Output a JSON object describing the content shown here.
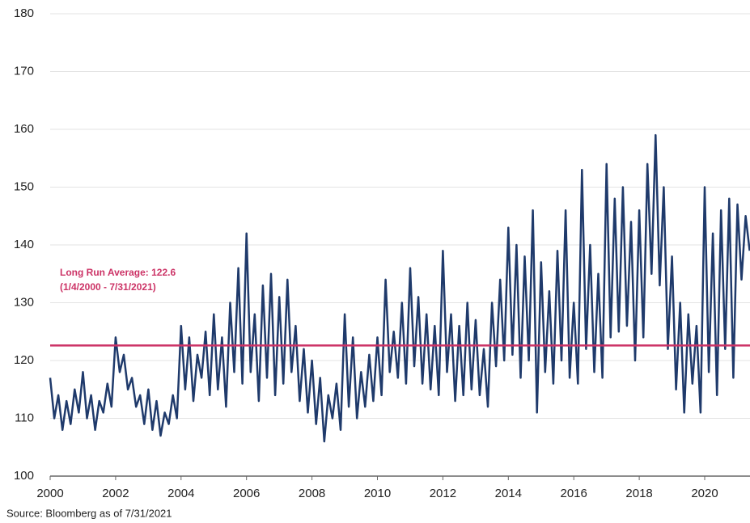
{
  "chart_data": {
    "type": "line",
    "x": [
      2000,
      2000.125,
      2000.25,
      2000.375,
      2000.5,
      2000.625,
      2000.75,
      2000.875,
      2001,
      2001.125,
      2001.25,
      2001.375,
      2001.5,
      2001.625,
      2001.75,
      2001.875,
      2002,
      2002.125,
      2002.25,
      2002.375,
      2002.5,
      2002.625,
      2002.75,
      2002.875,
      2003,
      2003.125,
      2003.25,
      2003.375,
      2003.5,
      2003.625,
      2003.75,
      2003.875,
      2004,
      2004.125,
      2004.25,
      2004.375,
      2004.5,
      2004.625,
      2004.75,
      2004.875,
      2005,
      2005.125,
      2005.25,
      2005.375,
      2005.5,
      2005.625,
      2005.75,
      2005.875,
      2006,
      2006.125,
      2006.25,
      2006.375,
      2006.5,
      2006.625,
      2006.75,
      2006.875,
      2007,
      2007.125,
      2007.25,
      2007.375,
      2007.5,
      2007.625,
      2007.75,
      2007.875,
      2008,
      2008.125,
      2008.25,
      2008.375,
      2008.5,
      2008.625,
      2008.75,
      2008.875,
      2009,
      2009.125,
      2009.25,
      2009.375,
      2009.5,
      2009.625,
      2009.75,
      2009.875,
      2010,
      2010.125,
      2010.25,
      2010.375,
      2010.5,
      2010.625,
      2010.75,
      2010.875,
      2011,
      2011.125,
      2011.25,
      2011.375,
      2011.5,
      2011.625,
      2011.75,
      2011.875,
      2012,
      2012.125,
      2012.25,
      2012.375,
      2012.5,
      2012.625,
      2012.75,
      2012.875,
      2013,
      2013.125,
      2013.25,
      2013.375,
      2013.5,
      2013.625,
      2013.75,
      2013.875,
      2014,
      2014.125,
      2014.25,
      2014.375,
      2014.5,
      2014.625,
      2014.75,
      2014.875,
      2015,
      2015.125,
      2015.25,
      2015.375,
      2015.5,
      2015.625,
      2015.75,
      2015.875,
      2016,
      2016.125,
      2016.25,
      2016.375,
      2016.5,
      2016.625,
      2016.75,
      2016.875,
      2017,
      2017.125,
      2017.25,
      2017.375,
      2017.5,
      2017.625,
      2017.75,
      2017.875,
      2018,
      2018.125,
      2018.25,
      2018.375,
      2018.5,
      2018.625,
      2018.75,
      2018.875,
      2019,
      2019.125,
      2019.25,
      2019.375,
      2019.5,
      2019.625,
      2019.75,
      2019.875,
      2020,
      2020.125,
      2020.25,
      2020.375,
      2020.5,
      2020.625,
      2020.75,
      2020.875,
      2021,
      2021.125,
      2021.25,
      2021.375
    ],
    "series": [
      {
        "color": "#1f3a6b",
        "values": [
          117,
          110,
          114,
          108,
          113,
          109,
          115,
          111,
          118,
          110,
          114,
          108,
          113,
          111,
          116,
          112,
          124,
          118,
          121,
          115,
          117,
          112,
          114,
          109,
          115,
          108,
          113,
          107,
          111,
          109,
          114,
          110,
          126,
          115,
          124,
          113,
          121,
          117,
          125,
          114,
          128,
          115,
          124,
          112,
          130,
          118,
          136,
          116,
          142,
          118,
          128,
          113,
          133,
          117,
          135,
          114,
          131,
          116,
          134,
          118,
          126,
          113,
          122,
          111,
          120,
          109,
          117,
          106,
          114,
          110,
          116,
          108,
          128,
          112,
          124,
          110,
          118,
          112,
          121,
          113,
          124,
          114,
          134,
          118,
          125,
          117,
          130,
          116,
          136,
          119,
          131,
          116,
          128,
          115,
          126,
          114,
          139,
          118,
          128,
          113,
          126,
          114,
          130,
          115,
          127,
          114,
          122,
          112,
          130,
          119,
          134,
          120,
          143,
          121,
          140,
          117,
          138,
          120,
          146,
          111,
          137,
          118,
          132,
          116,
          139,
          120,
          146,
          117,
          130,
          116,
          153,
          122,
          140,
          118,
          135,
          117,
          154,
          124,
          148,
          125,
          150,
          126,
          144,
          120,
          146,
          124,
          154,
          135,
          159,
          133,
          150,
          122,
          138,
          115,
          130,
          111,
          128,
          116,
          126,
          111,
          150,
          118,
          142,
          114,
          146,
          122,
          148,
          117,
          147,
          134,
          145,
          139
        ]
      }
    ],
    "average": 122.6,
    "average_color": "#cc3366",
    "annotation": [
      "Long Run Average: 122.6",
      "(1/4/2000  - 7/31/2021)"
    ],
    "source": "Source:  Bloomberg  as of 7/31/2021",
    "xlim": [
      2000,
      2021.4
    ],
    "xticks": [
      2000,
      2002,
      2004,
      2006,
      2008,
      2010,
      2012,
      2014,
      2016,
      2018,
      2020
    ],
    "ylim": [
      100,
      180
    ],
    "yticks": [
      100,
      110,
      120,
      130,
      140,
      150,
      160,
      170,
      180
    ],
    "grid": true
  }
}
